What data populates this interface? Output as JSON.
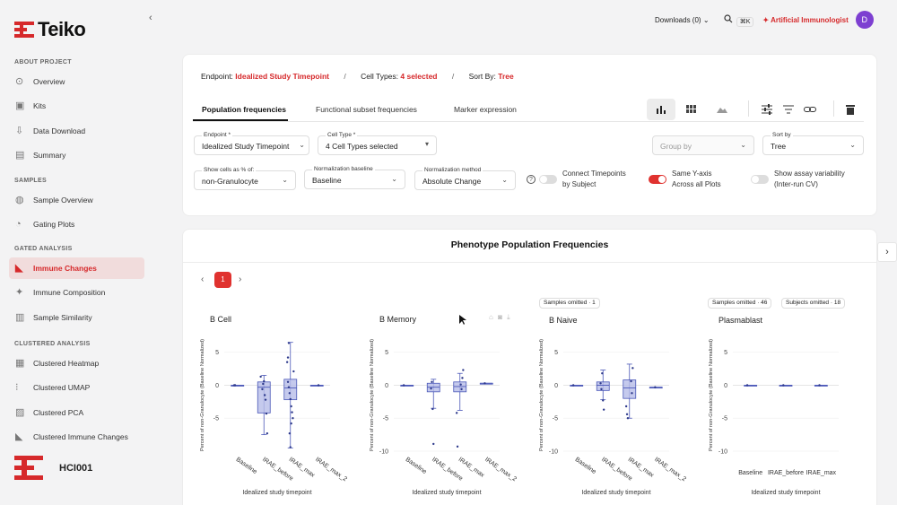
{
  "brand": {
    "name": "Teiko",
    "accent": "#d6292b"
  },
  "sidebar": {
    "sections": [
      {
        "title": "ABOUT PROJECT",
        "items": [
          "Overview",
          "Kits",
          "Data Download",
          "Summary"
        ]
      },
      {
        "title": "SAMPLES",
        "items": [
          "Sample Overview",
          "Gating Plots"
        ]
      },
      {
        "title": "GATED ANALYSIS",
        "items": [
          "Immune Changes",
          "Immune Composition",
          "Sample Similarity"
        ]
      },
      {
        "title": "CLUSTERED ANALYSIS",
        "items": [
          "Clustered Heatmap",
          "Clustered UMAP",
          "Clustered PCA",
          "Clustered Immune Changes"
        ]
      }
    ],
    "active": "Immune Changes",
    "project": "HCI001"
  },
  "topbar": {
    "downloads": "Downloads (0)",
    "shortcut": "⌘K",
    "assistant": "Artificial Immunologist",
    "avatar": "D"
  },
  "summary": {
    "endpoint_label": "Endpoint:",
    "endpoint_value": "Idealized Study Timepoint",
    "celltypes_label": "Cell Types:",
    "celltypes_value": "4 selected",
    "sort_label": "Sort By:",
    "sort_value": "Tree",
    "sep": "/"
  },
  "tabs": [
    "Population frequencies",
    "Functional subset frequencies",
    "Marker expression"
  ],
  "controls": {
    "endpoint": {
      "label": "Endpoint *",
      "value": "Idealized Study Timepoint"
    },
    "celltype": {
      "label": "Cell Type *",
      "value": "4 Cell Types selected"
    },
    "groupby": {
      "placeholder": "Group by"
    },
    "sortby": {
      "label": "Sort by",
      "value": "Tree"
    },
    "showpct": {
      "label": "Show cells as % of:",
      "value": "non-Granulocyte"
    },
    "normbase": {
      "label": "Normalization baseline",
      "value": "Baseline"
    },
    "normmethod": {
      "label": "Normalization method",
      "value": "Absolute Change"
    },
    "connect": {
      "label1": "Connect Timepoints",
      "label2": "by Subject",
      "on": false
    },
    "sameaxis": {
      "label1": "Same Y-axis",
      "label2": "Across all Plots",
      "on": true
    },
    "variability": {
      "label1": "Show assay variability",
      "label2": "(Inter-run CV)",
      "on": false
    }
  },
  "panel": {
    "title": "Phenotype Population Frequencies",
    "page": "1"
  },
  "chart_data": [
    {
      "type": "box",
      "title": "B Cell",
      "xlabel": "Idealized study timepoint",
      "ylabel": "Percent of non-Granulocyte (Baseline Normalized)",
      "categories": [
        "Baseline",
        "IRAE_before",
        "IRAE_max",
        "IRAE_max_2"
      ],
      "yticks": [
        5,
        0,
        -5
      ],
      "ylim": [
        -10,
        7
      ],
      "boxes": [
        {
          "q1": 0,
          "med": 0,
          "q3": 0,
          "lo": 0,
          "hi": 0
        },
        {
          "q1": -4.2,
          "med": -0.3,
          "q3": 0.5,
          "lo": -7.5,
          "hi": 1.5
        },
        {
          "q1": -2.2,
          "med": -0.4,
          "q3": 0.9,
          "lo": -9.5,
          "hi": 6.5
        },
        {
          "q1": 0,
          "med": 0,
          "q3": 0,
          "lo": 0,
          "hi": 0
        }
      ],
      "points": [
        [
          0,
          0
        ],
        [
          0,
          0
        ],
        [
          1,
          -0.6
        ],
        [
          1,
          0.2
        ],
        [
          1,
          0.6
        ],
        [
          1,
          -1.5
        ],
        [
          1,
          -2.2
        ],
        [
          1,
          -4.3
        ],
        [
          1,
          -7.3
        ],
        [
          1,
          1.3
        ],
        [
          2,
          0.5
        ],
        [
          2,
          -0.3
        ],
        [
          2,
          -1.2
        ],
        [
          2,
          -2.1
        ],
        [
          2,
          -3.2
        ],
        [
          2,
          -4.1
        ],
        [
          2,
          -5
        ],
        [
          2,
          2.1
        ],
        [
          2,
          3.5
        ],
        [
          2,
          4.2
        ],
        [
          2,
          6.4
        ],
        [
          2,
          -7.3
        ],
        [
          2,
          -9.4
        ],
        [
          2,
          -5.8
        ],
        [
          3,
          0
        ]
      ]
    },
    {
      "type": "box",
      "title": "B Memory",
      "xlabel": "Idealized study timepoint",
      "ylabel": "Percent of non-Granulocyte (Baseline Normalized)",
      "categories": [
        "Baseline",
        "IRAE_before",
        "IRAE_max",
        "IRAE_max_2"
      ],
      "yticks": [
        5,
        0,
        -5,
        -10
      ],
      "ylim": [
        -10,
        7
      ],
      "boxes": [
        {
          "q1": 0,
          "med": 0,
          "q3": 0,
          "lo": 0,
          "hi": 0
        },
        {
          "q1": -1,
          "med": -0.3,
          "q3": 0.3,
          "lo": -3.5,
          "hi": 0.9
        },
        {
          "q1": -1,
          "med": -0.2,
          "q3": 0.5,
          "lo": -3.8,
          "hi": 1.8
        },
        {
          "q1": 0.3,
          "med": 0.3,
          "q3": 0.3,
          "lo": 0.3,
          "hi": 0.3
        }
      ],
      "points": [
        [
          0,
          0
        ],
        [
          1,
          -0.5
        ],
        [
          1,
          0.5
        ],
        [
          1,
          -3.6
        ],
        [
          1,
          -8.9
        ],
        [
          2,
          0.1
        ],
        [
          2,
          -0.6
        ],
        [
          2,
          1.1
        ],
        [
          2,
          2.3
        ],
        [
          2,
          -4.2
        ],
        [
          2,
          -9.3
        ],
        [
          3,
          0.3
        ]
      ]
    },
    {
      "type": "box",
      "title": "B Naive",
      "xlabel": "Idealized study timepoint",
      "ylabel": "Percent of non-Granulocyte (Baseline Normalized)",
      "categories": [
        "Baseline",
        "IRAE_before",
        "IRAE_max",
        "IRAE_max_2"
      ],
      "yticks": [
        5,
        0,
        -5,
        -10
      ],
      "ylim": [
        -10,
        7
      ],
      "boxes": [
        {
          "q1": 0,
          "med": 0,
          "q3": 0,
          "lo": 0,
          "hi": 0
        },
        {
          "q1": -0.8,
          "med": 0,
          "q3": 0.5,
          "lo": -2.2,
          "hi": 2.3
        },
        {
          "q1": -2,
          "med": -0.4,
          "q3": 0.8,
          "lo": -5,
          "hi": 3.2
        },
        {
          "q1": -0.3,
          "med": -0.3,
          "q3": -0.3,
          "lo": -0.3,
          "hi": -0.3
        }
      ],
      "points": [
        [
          0,
          0
        ],
        [
          1,
          0.3
        ],
        [
          1,
          -0.6
        ],
        [
          1,
          1.8
        ],
        [
          1,
          -2.3
        ],
        [
          1,
          -3.7
        ],
        [
          2,
          0.6
        ],
        [
          2,
          -1.2
        ],
        [
          2,
          2.6
        ],
        [
          2,
          -3.2
        ],
        [
          2,
          -4.4
        ],
        [
          2,
          -5
        ],
        [
          3,
          -0.3
        ]
      ]
    },
    {
      "type": "box",
      "title": "Plasmablast",
      "xlabel": "Idealized study timepoint",
      "ylabel": "Percent of non-Granulocyte (Baseline Normalized)",
      "categories": [
        "Baseline",
        "IRAE_before",
        "IRAE_max"
      ],
      "yticks": [
        5,
        0,
        -5,
        -10
      ],
      "ylim": [
        -10,
        7
      ],
      "boxes": [
        {
          "q1": 0,
          "med": 0,
          "q3": 0,
          "lo": 0,
          "hi": 0
        },
        {
          "q1": 0,
          "med": 0,
          "q3": 0,
          "lo": 0,
          "hi": 0
        },
        {
          "q1": 0,
          "med": 0,
          "q3": 0,
          "lo": 0,
          "hi": 0
        }
      ],
      "points": [
        [
          0,
          0
        ],
        [
          1,
          0
        ],
        [
          2,
          0
        ]
      ]
    }
  ],
  "badges": {
    "bnaive": "Samples omitted · 1",
    "plasma_samples": "Samples omitted · 46",
    "plasma_subjects": "Subjects omitted · 18"
  }
}
